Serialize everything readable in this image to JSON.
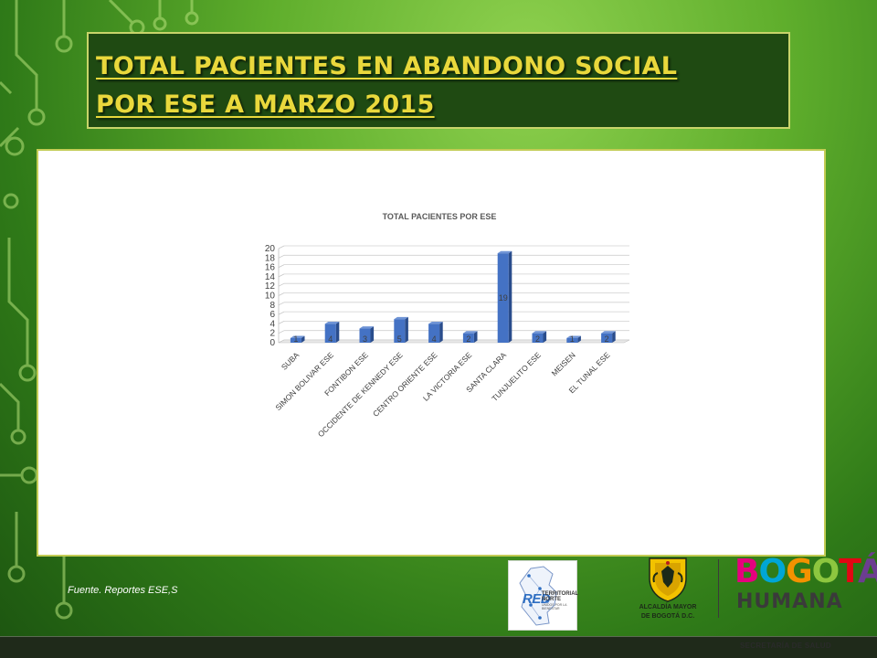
{
  "slide": {
    "title_line1": "TOTAL PACIENTES EN ABANDONO SOCIAL",
    "title_line2": "POR ESE A MARZO 2015",
    "source": "Fuente. Reportes ESE,S",
    "colors": {
      "title_text": "#e9d83c",
      "title_bg": "#1f4a12",
      "bar": "#4472c4"
    }
  },
  "logos": {
    "red": {
      "word": "RED",
      "line1": "TERRITORIAL",
      "line2": "NORTE",
      "tagline": "UNIDOS POR LA BIENESTAR"
    },
    "alcaldia": {
      "line1": "ALCALDÍA MAYOR",
      "line2": "DE BOGOTÁ D.C."
    },
    "bogota": {
      "letters": [
        "B",
        "O",
        "G",
        "O",
        "T",
        "Á"
      ],
      "letter_colors": [
        "#e5007e",
        "#00a6d6",
        "#f39200",
        "#8dc63f",
        "#e30613",
        "#6c3d91"
      ],
      "humana": "HUMANA"
    },
    "secretaria": "SECRETARÍA DE SALUD"
  },
  "chart_data": {
    "type": "bar",
    "title": "TOTAL PACIENTES POR ESE",
    "categories": [
      "SUBA",
      "SIMON BOLIVAR ESE",
      "FONTIBON ESE",
      "OCCIDENTE DE KENNEDY ESE",
      "CENTRO ORIENTE ESE",
      "LA VICTORIA ESE",
      "SANTA CLARA",
      "TUNJUELITO ESE",
      "MEISEN",
      "EL TUNAL ESE"
    ],
    "values": [
      1,
      4,
      3,
      5,
      4,
      2,
      19,
      2,
      1,
      2
    ],
    "data_labels": [
      "1",
      "4",
      "3",
      "5",
      "4",
      "2",
      "19",
      "2",
      "1",
      "2"
    ],
    "ylim": [
      0,
      20
    ],
    "yticks": [
      "0",
      "2",
      "4",
      "6",
      "8",
      "10",
      "12",
      "14",
      "16",
      "18",
      "20"
    ],
    "grid": true,
    "legend": "none",
    "style": "3d"
  }
}
